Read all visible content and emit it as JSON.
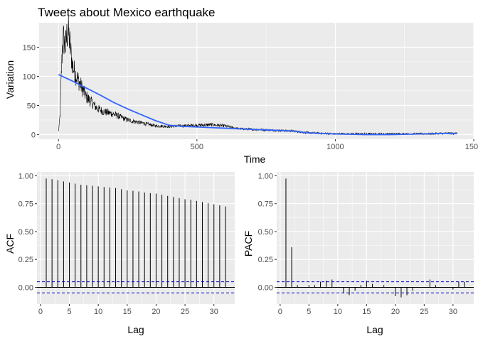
{
  "colors": {
    "panel_bg": "#ebebeb",
    "grid_major": "#ffffff",
    "series_line": "#000000",
    "smooth_line": "#3366ff",
    "ci_line": "#0000cc"
  },
  "chart_data": [
    {
      "id": "timeseries",
      "type": "line",
      "title": "Tweets about Mexico earthquake",
      "xlabel": "Time",
      "ylabel": "Variation",
      "xlim": [
        -70,
        1500
      ],
      "ylim": [
        -8,
        192
      ],
      "xticks": [
        0,
        500,
        1000,
        1500
      ],
      "yticks": [
        0,
        50,
        100,
        150
      ],
      "grid": true,
      "anchors": [
        [
          0,
          5
        ],
        [
          6,
          35
        ],
        [
          10,
          100
        ],
        [
          14,
          150
        ],
        [
          18,
          165
        ],
        [
          25,
          150
        ],
        [
          30,
          170
        ],
        [
          35,
          180
        ],
        [
          40,
          160
        ],
        [
          45,
          140
        ],
        [
          50,
          120
        ],
        [
          60,
          105
        ],
        [
          70,
          95
        ],
        [
          80,
          85
        ],
        [
          90,
          75
        ],
        [
          100,
          65
        ],
        [
          120,
          55
        ],
        [
          140,
          45
        ],
        [
          160,
          40
        ],
        [
          200,
          35
        ],
        [
          250,
          25
        ],
        [
          300,
          20
        ],
        [
          350,
          15
        ],
        [
          400,
          14
        ],
        [
          450,
          15
        ],
        [
          500,
          16
        ],
        [
          550,
          17
        ],
        [
          600,
          15
        ],
        [
          650,
          10
        ],
        [
          700,
          9
        ],
        [
          750,
          8
        ],
        [
          800,
          7
        ],
        [
          850,
          6
        ],
        [
          900,
          3
        ],
        [
          950,
          2
        ],
        [
          1000,
          1
        ],
        [
          1100,
          1
        ],
        [
          1200,
          1
        ],
        [
          1300,
          1
        ],
        [
          1400,
          2
        ],
        [
          1440,
          2
        ]
      ],
      "smooth": [
        [
          0,
          103
        ],
        [
          50,
          92
        ],
        [
          100,
          80
        ],
        [
          150,
          68
        ],
        [
          200,
          55
        ],
        [
          250,
          44
        ],
        [
          300,
          34
        ],
        [
          350,
          24
        ],
        [
          400,
          16
        ],
        [
          450,
          14
        ],
        [
          500,
          13
        ],
        [
          550,
          12
        ],
        [
          600,
          11
        ],
        [
          650,
          10
        ],
        [
          700,
          9
        ],
        [
          750,
          8
        ],
        [
          800,
          7
        ],
        [
          850,
          6
        ],
        [
          900,
          3
        ],
        [
          950,
          2
        ],
        [
          1000,
          1
        ],
        [
          1100,
          0
        ],
        [
          1200,
          0
        ],
        [
          1300,
          1
        ],
        [
          1400,
          2
        ],
        [
          1440,
          2
        ]
      ]
    },
    {
      "id": "acf",
      "type": "bar",
      "xlabel": "Lag",
      "ylabel": "ACF",
      "xlim": [
        -0.6,
        33.6
      ],
      "ylim": [
        -0.15,
        1.035
      ],
      "xticks": [
        0,
        5,
        10,
        15,
        20,
        25,
        30
      ],
      "yticks": [
        0.0,
        0.25,
        0.5,
        0.75,
        1.0
      ],
      "ytick_labels": [
        "0.00",
        "0.25",
        "0.50",
        "0.75",
        "1.00"
      ],
      "xtick_labels": [
        "0",
        "5",
        "10",
        "15",
        "20",
        "25",
        "30"
      ],
      "ci": 0.05,
      "lags": [
        1,
        2,
        3,
        4,
        5,
        6,
        7,
        8,
        9,
        10,
        11,
        12,
        13,
        14,
        15,
        16,
        17,
        18,
        19,
        20,
        21,
        22,
        23,
        24,
        25,
        26,
        27,
        28,
        29,
        30,
        31,
        32
      ],
      "values": [
        0.975,
        0.97,
        0.96,
        0.95,
        0.94,
        0.93,
        0.92,
        0.915,
        0.91,
        0.905,
        0.9,
        0.895,
        0.89,
        0.88,
        0.87,
        0.865,
        0.86,
        0.85,
        0.845,
        0.84,
        0.83,
        0.82,
        0.81,
        0.8,
        0.79,
        0.785,
        0.775,
        0.765,
        0.755,
        0.745,
        0.735,
        0.725
      ],
      "grid": true
    },
    {
      "id": "pacf",
      "type": "bar",
      "xlabel": "Lag",
      "ylabel": "PACF",
      "xlim": [
        -0.6,
        33.6
      ],
      "ylim": [
        -0.15,
        1.035
      ],
      "xticks": [
        0,
        5,
        10,
        15,
        20,
        25,
        30
      ],
      "yticks": [
        0.0,
        0.25,
        0.5,
        0.75,
        1.0
      ],
      "ytick_labels": [
        "0.00",
        "0.25",
        "0.50",
        "0.75",
        "1.00"
      ],
      "xtick_labels": [
        "0",
        "5",
        "10",
        "15",
        "20",
        "25",
        "30"
      ],
      "ci": 0.05,
      "lags": [
        1,
        2,
        3,
        4,
        5,
        6,
        7,
        8,
        9,
        10,
        11,
        12,
        13,
        14,
        15,
        16,
        17,
        18,
        19,
        20,
        21,
        22,
        23,
        24,
        25,
        26,
        27,
        28,
        29,
        30,
        31,
        32
      ],
      "values": [
        0.975,
        0.36,
        0.02,
        0.0,
        0.02,
        0.02,
        0.05,
        0.06,
        0.07,
        0.0,
        -0.05,
        -0.07,
        -0.03,
        0.02,
        0.06,
        0.03,
        0.0,
        0.02,
        0.0,
        -0.08,
        -0.09,
        -0.07,
        -0.03,
        0.0,
        0.0,
        0.07,
        0.02,
        0.0,
        0.0,
        -0.02,
        0.05,
        0.05
      ],
      "grid": true
    }
  ]
}
